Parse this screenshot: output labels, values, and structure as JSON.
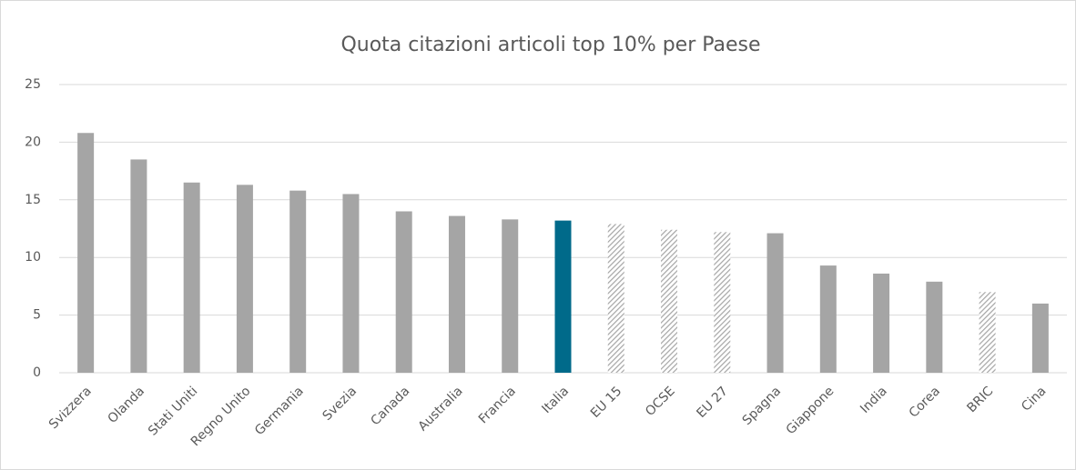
{
  "chart_data": {
    "type": "bar",
    "title": "Quota citazioni articoli top 10% per Paese",
    "categories": [
      "Svizzera",
      "Olanda",
      "Stati Uniti",
      "Regno Unito",
      "Germania",
      "Svezia",
      "Canada",
      "Australia",
      "Francia",
      "Italia",
      "EU 15",
      "OCSE",
      "EU 27",
      "Spagna",
      "Giappone",
      "India",
      "Corea",
      "BRIC",
      "Cina"
    ],
    "values": [
      20.8,
      18.5,
      16.5,
      16.3,
      15.8,
      15.5,
      14.0,
      13.6,
      13.3,
      13.2,
      12.9,
      12.4,
      12.2,
      12.1,
      9.3,
      8.6,
      7.9,
      7.0,
      6.0
    ],
    "colors": [
      "#a5a5a5",
      "#a5a5a5",
      "#a5a5a5",
      "#a5a5a5",
      "#a5a5a5",
      "#a5a5a5",
      "#a5a5a5",
      "#a5a5a5",
      "#a5a5a5",
      "#006a8a",
      "#a5a5a5",
      "#a5a5a5",
      "#a5a5a5",
      "#a5a5a5",
      "#a5a5a5",
      "#a5a5a5",
      "#a5a5a5",
      "#a5a5a5",
      "#a5a5a5"
    ],
    "patterns": [
      "solid",
      "solid",
      "solid",
      "solid",
      "solid",
      "solid",
      "solid",
      "solid",
      "solid",
      "solid",
      "hatched",
      "hatched",
      "hatched",
      "solid",
      "solid",
      "solid",
      "solid",
      "hatched",
      "solid"
    ],
    "ylim": [
      0,
      25
    ],
    "yticks": [
      0,
      5,
      10,
      15,
      20,
      25
    ],
    "grid": true
  }
}
